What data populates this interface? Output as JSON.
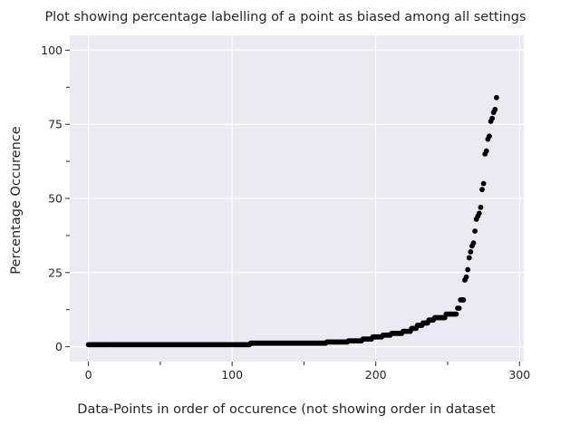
{
  "chart_data": {
    "type": "scatter",
    "title": "Plot showing percentage labelling of a point as biased among all settings",
    "xlabel": "Data-Points in order of occurence (not showing order in dataset",
    "ylabel": "Percentage Occurence",
    "xlim": [
      -13,
      303
    ],
    "ylim": [
      -5,
      105
    ],
    "xticks": [
      0,
      100,
      200,
      300
    ],
    "xtick_labels": [
      "0",
      "100",
      "200",
      "300"
    ],
    "x_minor_ticks": [
      50,
      150,
      250
    ],
    "yticks": [
      0,
      25,
      50,
      75,
      100
    ],
    "ytick_labels": [
      "0",
      "25",
      "50",
      "75",
      "100"
    ],
    "y_minor_ticks": [
      12.5,
      37.5,
      62.5,
      87.5
    ],
    "grid": true,
    "background": "#eaeaf2",
    "grid_color": "#ffffff",
    "marker_color": "#000000",
    "segments": [
      {
        "x_start": 0,
        "x_end": 112,
        "y": 0.7
      },
      {
        "x_start": 113,
        "x_end": 165,
        "y": 1.2
      },
      {
        "x_start": 166,
        "x_end": 180,
        "y": 1.6
      },
      {
        "x_start": 181,
        "x_end": 190,
        "y": 2.0
      },
      {
        "x_start": 191,
        "x_end": 197,
        "y": 2.6
      },
      {
        "x_start": 198,
        "x_end": 204,
        "y": 3.3
      },
      {
        "x_start": 205,
        "x_end": 210,
        "y": 3.9
      },
      {
        "x_start": 211,
        "x_end": 218,
        "y": 4.5
      },
      {
        "x_start": 219,
        "x_end": 224,
        "y": 5.2
      },
      {
        "x_start": 225,
        "x_end": 228,
        "y": 6.2
      },
      {
        "x_start": 229,
        "x_end": 232,
        "y": 7.2
      },
      {
        "x_start": 233,
        "x_end": 236,
        "y": 8.0
      },
      {
        "x_start": 237,
        "x_end": 240,
        "y": 9.0
      },
      {
        "x_start": 241,
        "x_end": 248,
        "y": 9.8
      },
      {
        "x_start": 249,
        "x_end": 256,
        "y": 11.0
      },
      {
        "x_start": 257,
        "x_end": 258,
        "y": 13.0
      },
      {
        "x_start": 259,
        "x_end": 261,
        "y": 15.8
      }
    ],
    "points": [
      [
        262,
        22.5
      ],
      [
        263,
        23.5
      ],
      [
        264,
        26
      ],
      [
        265,
        30
      ],
      [
        266,
        32
      ],
      [
        267,
        34
      ],
      [
        268,
        35
      ],
      [
        269,
        39
      ],
      [
        270,
        43
      ],
      [
        271,
        44
      ],
      [
        272,
        45
      ],
      [
        273,
        47
      ],
      [
        274,
        53
      ],
      [
        275,
        55
      ],
      [
        276,
        65
      ],
      [
        277,
        66
      ],
      [
        278,
        70
      ],
      [
        279,
        71
      ],
      [
        280,
        76
      ],
      [
        281,
        77
      ],
      [
        282,
        79
      ],
      [
        283,
        80
      ],
      [
        284,
        84
      ]
    ]
  }
}
